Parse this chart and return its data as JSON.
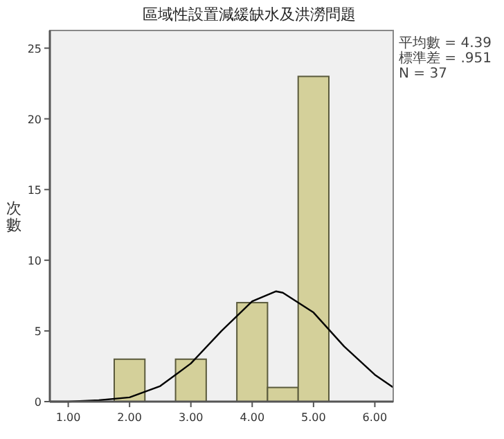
{
  "chart_data": {
    "type": "histogram",
    "title": "區域性設置減緩缺水及洪澇問題",
    "ylabel": "次數",
    "annotations": [
      "平均數 = 4.39",
      "標準差 = .951",
      "N = 37"
    ],
    "series": [
      {
        "color": "#d4d09a",
        "bins": [
          1.75,
          2.25,
          2.75,
          3.25,
          3.75,
          4.25,
          4.75,
          5.25
        ],
        "values": [
          3,
          0,
          3,
          0,
          7,
          1,
          23
        ]
      },
      {
        "type": "line",
        "color": "#000000",
        "x": [
          0.7,
          1.0,
          1.5,
          2.0,
          2.5,
          3.0,
          3.5,
          4.0,
          4.39,
          4.5,
          5.0,
          5.5,
          6.0,
          6.3
        ],
        "values": [
          0.0,
          0.0,
          0.1,
          0.3,
          1.1,
          2.7,
          5.0,
          7.1,
          7.8,
          7.7,
          6.3,
          3.9,
          1.9,
          1.0
        ]
      }
    ],
    "xlim": [
      0.7,
      6.3
    ],
    "ylim": [
      0,
      26.25
    ],
    "xticks": [
      {
        "value": 1,
        "label": "1.00"
      },
      {
        "value": 2,
        "label": "2.00"
      },
      {
        "value": 3,
        "label": "3.00"
      },
      {
        "value": 4,
        "label": "4.00"
      },
      {
        "value": 5,
        "label": "5.00"
      },
      {
        "value": 6,
        "label": "6.00"
      }
    ],
    "yticks": [
      0,
      5,
      10,
      15,
      20,
      25
    ]
  }
}
